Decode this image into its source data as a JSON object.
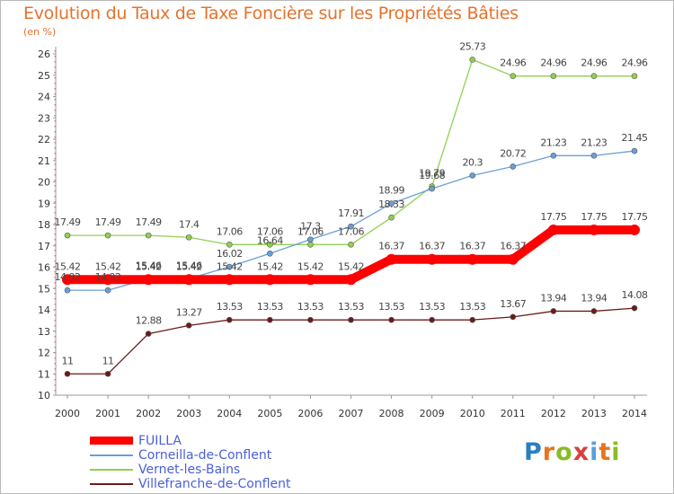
{
  "chart_data": {
    "type": "line",
    "title": "Evolution du Taux de Taxe Foncière sur les Propriétés Bâties",
    "subtitle": "(en %)",
    "x": [
      "2000",
      "2001",
      "2002",
      "2003",
      "2004",
      "2005",
      "2006",
      "2007",
      "2008",
      "2009",
      "2010",
      "2011",
      "2012",
      "2013",
      "2014"
    ],
    "ylim": [
      10,
      26
    ],
    "yticks": [
      10,
      11,
      12,
      13,
      14,
      15,
      16,
      17,
      18,
      19,
      20,
      21,
      22,
      23,
      24,
      25,
      26
    ],
    "grid": false,
    "legend_position": "bottom-left",
    "series": [
      {
        "name": "FUILLA",
        "color": "#ff0000",
        "values": [
          15.42,
          15.42,
          15.42,
          15.42,
          15.42,
          15.42,
          15.42,
          15.42,
          16.37,
          16.37,
          16.37,
          16.37,
          17.75,
          17.75,
          17.75
        ],
        "labels": [
          "15.42",
          "15.42",
          "15.42",
          "15.42",
          "15.42",
          "15.42",
          "15.42",
          "15.42",
          "16.37",
          "16.37",
          "16.37",
          "16.37",
          "17.75",
          "17.75",
          "17.75"
        ]
      },
      {
        "name": "Corneilla-de-Conflent",
        "color": "#6a9fd8",
        "values": [
          14.92,
          14.92,
          15.46,
          15.46,
          16.02,
          16.64,
          17.3,
          17.91,
          18.99,
          19.68,
          20.3,
          20.72,
          21.23,
          21.23,
          21.45
        ],
        "labels": [
          "14.92",
          "14.92",
          "15.46",
          "15.46",
          "16.02",
          "16.64",
          "17.3",
          "17.91",
          "18.99",
          "19.68",
          "20.3",
          "20.72",
          "21.23",
          "21.23",
          "21.45"
        ]
      },
      {
        "name": "Vernet-les-Bains",
        "color": "#90d050",
        "values": [
          17.49,
          17.49,
          17.49,
          17.4,
          17.06,
          17.06,
          17.06,
          17.06,
          18.33,
          19.79,
          25.73,
          24.96,
          24.96,
          24.96,
          24.96
        ],
        "labels": [
          "17.49",
          "17.49",
          "17.49",
          "17.4",
          "17.06",
          "17.06",
          "17.06",
          "17.06",
          "18.33",
          "19.79",
          "25.73",
          "24.96",
          "24.96",
          "24.96",
          "24.96"
        ]
      },
      {
        "name": "Villefranche-de-Conflent",
        "color": "#6b1a1a",
        "values": [
          11,
          11,
          12.88,
          13.27,
          13.53,
          13.53,
          13.53,
          13.53,
          13.53,
          13.53,
          13.53,
          13.67,
          13.94,
          13.94,
          14.08
        ],
        "labels": [
          "11",
          "11",
          "12.88",
          "13.27",
          "13.53",
          "13.53",
          "13.53",
          "13.53",
          "13.53",
          "13.53",
          "13.53",
          "13.67",
          "13.94",
          "13.94",
          "14.08"
        ]
      }
    ]
  },
  "logo": {
    "text": "Proxiti",
    "parts": [
      "P",
      "r",
      "o",
      "x",
      "i",
      "t",
      "i"
    ]
  }
}
